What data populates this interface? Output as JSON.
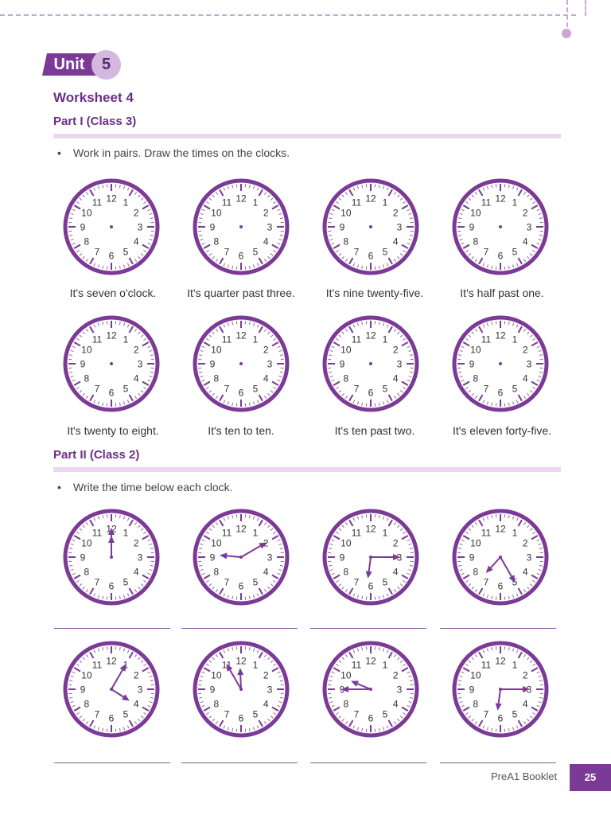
{
  "unit": {
    "label": "Unit",
    "number": "5"
  },
  "worksheet_title": "Worksheet 4",
  "part1": {
    "title": "Part I (Class 3)",
    "instruction": "Work in pairs. Draw the times on the clocks.",
    "captions": [
      "It's seven o'clock.",
      "It's quarter past three.",
      "It's nine twenty-five.",
      "It's half past one.",
      "It's twenty to eight.",
      "It's ten to ten.",
      "It's ten past two.",
      "It's eleven forty-five."
    ]
  },
  "part2": {
    "title": "Part II (Class 2)",
    "instruction": "Write the time below each clock.",
    "clock_times": [
      {
        "hour": 12,
        "minute": 0
      },
      {
        "hour": 9,
        "minute": 10
      },
      {
        "hour": 6,
        "minute": 15
      },
      {
        "hour": 7,
        "minute": 25
      },
      {
        "hour": 4,
        "minute": 5
      },
      {
        "hour": 11,
        "minute": 55
      },
      {
        "hour": 9,
        "minute": 45
      },
      {
        "hour": 6,
        "minute": 15
      }
    ]
  },
  "clock_face_numbers": [
    "12",
    "1",
    "2",
    "3",
    "4",
    "5",
    "6",
    "7",
    "8",
    "9",
    "10",
    "11"
  ],
  "colors": {
    "accent": "#7b3a96",
    "rule": "#ebd8ee",
    "badge": "#d5b8df"
  },
  "footer": {
    "booklet": "PreA1 Booklet",
    "page": "25"
  }
}
